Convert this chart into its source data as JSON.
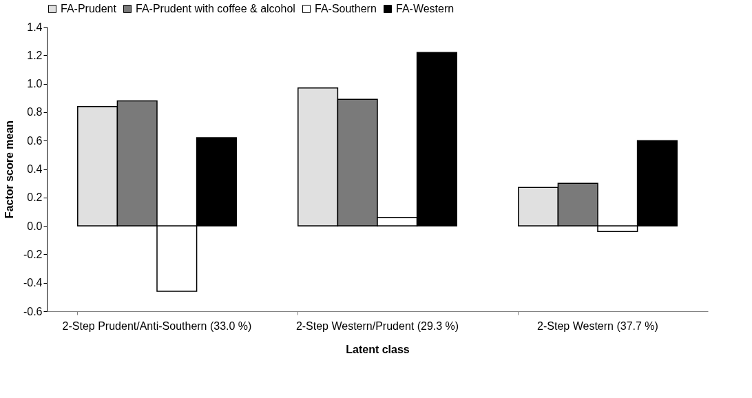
{
  "chart_data": {
    "type": "bar",
    "xlabel": "Latent class",
    "ylabel": "Factor score mean",
    "categories": [
      "2-Step Prudent/Anti-Southern\n(33.0 %)",
      "2-Step Western/Prudent\n(29.3 %)",
      "2-Step Western\n(37.7 %)"
    ],
    "series": [
      {
        "name": "FA-Prudent",
        "color": "#e0e0e0",
        "values": [
          0.84,
          0.97,
          0.27
        ]
      },
      {
        "name": "FA-Prudent with coffee & alcohol",
        "color": "#7a7a7a",
        "values": [
          0.88,
          0.89,
          0.3
        ]
      },
      {
        "name": "FA-Southern",
        "color": "#ffffff",
        "values": [
          -0.46,
          0.06,
          -0.04
        ]
      },
      {
        "name": "FA-Western",
        "color": "#000000",
        "values": [
          0.62,
          1.22,
          0.6
        ]
      }
    ],
    "ylim": [
      -0.6,
      1.4
    ],
    "yticks": [
      {
        "value": -0.6,
        "label": "-0.6"
      },
      {
        "value": -0.4,
        "label": "-0.4"
      },
      {
        "value": -0.2,
        "label": "-0.2"
      },
      {
        "value": 0,
        "label": "0.0"
      },
      {
        "value": 0.2,
        "label": "0.2"
      },
      {
        "value": 0.4,
        "label": "0.4"
      },
      {
        "value": 0.6,
        "label": "0.6"
      },
      {
        "value": 0.8,
        "label": "0.8"
      },
      {
        "value": 1,
        "label": "1.0"
      },
      {
        "value": 1.2,
        "label": "1.2"
      },
      {
        "value": 1.4,
        "label": "1.4"
      }
    ],
    "grid": false,
    "legend": "top"
  }
}
